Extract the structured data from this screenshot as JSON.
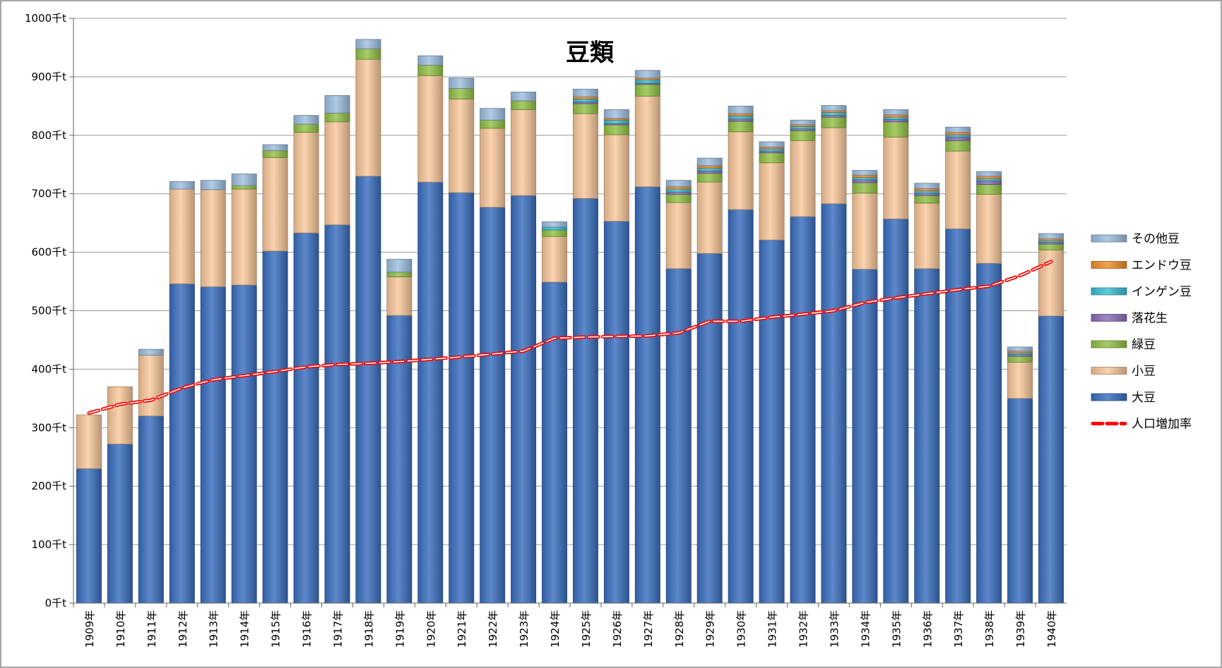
{
  "chart_data": {
    "type": "bar",
    "stacked": true,
    "title": "豆類",
    "ylim": [
      0,
      1000
    ],
    "yticks": [
      "0千t",
      "100千t",
      "200千t",
      "300千t",
      "400千t",
      "500千t",
      "600千t",
      "700千t",
      "800千t",
      "900千t",
      "1000千t"
    ],
    "ytick_values": [
      0,
      100,
      200,
      300,
      400,
      500,
      600,
      700,
      800,
      900,
      1000
    ],
    "grid": "horizontal",
    "legend_position": "right",
    "categories": [
      "1909年",
      "1910年",
      "1911年",
      "1912年",
      "1913年",
      "1914年",
      "1915年",
      "1916年",
      "1917年",
      "1918年",
      "1919年",
      "1920年",
      "1921年",
      "1922年",
      "1923年",
      "1924年",
      "1925年",
      "1926年",
      "1927年",
      "1928年",
      "1929年",
      "1930年",
      "1931年",
      "1932年",
      "1933年",
      "1934年",
      "1935年",
      "1936年",
      "1937年",
      "1938年",
      "1939年",
      "1940年"
    ],
    "series": [
      {
        "name": "大豆",
        "color": "#3a6fbf",
        "values": [
          230,
          272,
          320,
          546,
          541,
          544,
          602,
          633,
          647,
          730,
          492,
          720,
          702,
          677,
          697,
          549,
          692,
          653,
          712,
          572,
          598,
          673,
          621,
          661,
          683,
          571,
          657,
          572,
          640,
          581,
          350,
          491
        ]
      },
      {
        "name": "小豆",
        "color": "#f9c89b",
        "values": [
          92,
          98,
          104,
          162,
          166,
          164,
          160,
          172,
          176,
          200,
          66,
          182,
          160,
          135,
          147,
          78,
          145,
          148,
          155,
          113,
          122,
          133,
          132,
          130,
          130,
          130,
          140,
          112,
          133,
          118,
          62,
          113
        ]
      },
      {
        "name": "緑豆",
        "color": "#92c146",
        "values": [
          0,
          0,
          0,
          0,
          0,
          6,
          12,
          14,
          15,
          18,
          8,
          18,
          18,
          14,
          15,
          11,
          17,
          17,
          20,
          14,
          15,
          18,
          17,
          17,
          18,
          18,
          26,
          13,
          18,
          17,
          10,
          10
        ]
      },
      {
        "name": "落花生",
        "color": "#8a6fb8",
        "values": [
          0,
          0,
          0,
          0,
          0,
          0,
          0,
          0,
          0,
          0,
          0,
          0,
          0,
          0,
          0,
          0,
          3,
          2,
          2,
          4,
          4,
          4,
          3,
          3,
          3,
          5,
          4,
          4,
          6,
          6,
          3,
          3
        ]
      },
      {
        "name": "インゲン豆",
        "color": "#3bbfd6",
        "values": [
          0,
          0,
          0,
          0,
          0,
          0,
          0,
          0,
          0,
          0,
          0,
          0,
          0,
          0,
          0,
          5,
          5,
          6,
          6,
          5,
          5,
          5,
          4,
          4,
          5,
          4,
          4,
          4,
          4,
          4,
          3,
          3
        ]
      },
      {
        "name": "エンドウ豆",
        "color": "#f28e2b",
        "values": [
          0,
          0,
          0,
          0,
          0,
          0,
          0,
          0,
          0,
          0,
          0,
          0,
          0,
          0,
          0,
          0,
          4,
          3,
          3,
          4,
          4,
          4,
          3,
          3,
          3,
          4,
          4,
          4,
          4,
          4,
          3,
          3
        ]
      },
      {
        "name": "その他豆",
        "color": "#9fbfe0",
        "values": [
          0,
          0,
          10,
          13,
          16,
          20,
          10,
          15,
          30,
          16,
          22,
          16,
          18,
          20,
          15,
          9,
          13,
          15,
          13,
          11,
          13,
          13,
          9,
          8,
          9,
          8,
          9,
          9,
          9,
          8,
          7,
          9
        ]
      }
    ],
    "line_series": {
      "name": "人口増加率",
      "color": "#ff0000",
      "values": [
        325,
        340,
        347,
        368,
        382,
        389,
        396,
        404,
        408,
        410,
        413,
        417,
        421,
        426,
        431,
        453,
        455,
        456,
        457,
        462,
        482,
        482,
        489,
        494,
        500,
        514,
        522,
        529,
        536,
        542,
        560,
        584
      ]
    }
  }
}
